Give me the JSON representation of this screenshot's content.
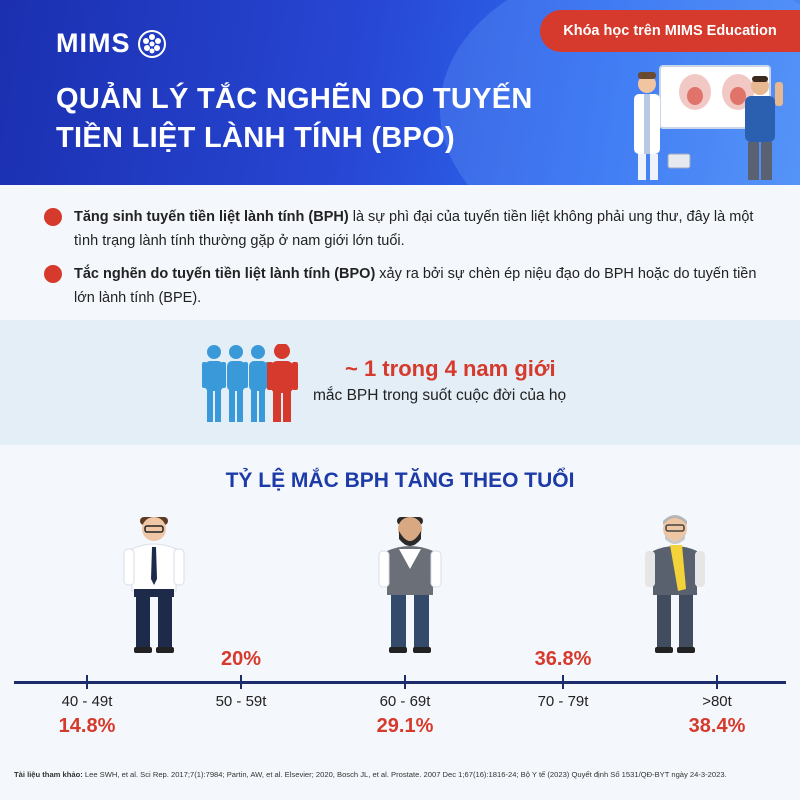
{
  "header": {
    "logo_text": "MIMS",
    "title_line1": "QUẢN LÝ TẮC NGHẼN DO TUYẾN",
    "title_line2": "TIỀN LIỆT LÀNH TÍNH (BPO)",
    "badge": "Khóa học trên MIMS Education"
  },
  "intro": {
    "bullets": [
      {
        "bold": "Tăng sinh tuyến tiền liệt lành tính (BPH)",
        "rest": " là sự phì đại của tuyến tiền liệt không phải ung thư, đây là một tình trạng lành tính thường gặp ở nam giới lớn tuổi."
      },
      {
        "bold": "Tắc nghẽn do tuyến tiền liệt lành tính (BPO)",
        "rest": " xảy ra bởi sự chèn ép niệu đạo do BPH hoặc do tuyến tiền lớn lành tính (BPE)."
      }
    ]
  },
  "stat": {
    "big": "~ 1 trong 4 nam giới",
    "small": "mắc BPH trong suốt cuộc đời của họ"
  },
  "age_section": {
    "title": "TỶ LỆ MẮC BPH TĂNG THEO TUỔI",
    "groups": [
      {
        "label": "40 - 49t",
        "value": "14.8%"
      },
      {
        "label": "50 - 59t",
        "value": "20%"
      },
      {
        "label": "60 - 69t",
        "value": "29.1%"
      },
      {
        "label": "70 - 79t",
        "value": "36.8%"
      },
      {
        "label": ">80t",
        "value": "38.4%"
      }
    ]
  },
  "references": {
    "label": "Tài liệu tham khảo:",
    "text": " Lee SWH, et al. Sci Rep. 2017;7(1):7984; Partin, AW, et al. Elsevier; 2020, Bosch JL, et al. Prostate. 2007 Dec 1;67(16):1816-24; Bộ Y tế (2023) Quyết định Số 1531/QĐ-BYT ngày 24-3-2023."
  },
  "colors": {
    "accent_red": "#d63a2c",
    "header_blue": "#2747d4",
    "title_blue": "#1d3ba8",
    "person_blue": "#3a9ad9"
  }
}
